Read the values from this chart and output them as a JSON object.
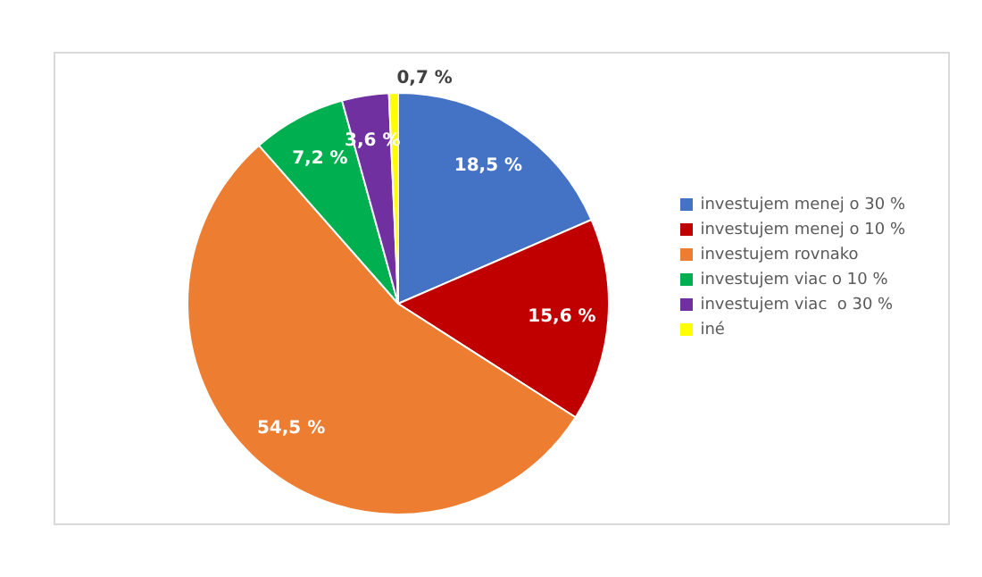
{
  "chart_data": {
    "type": "pie",
    "categories": [
      "investujem menej o 30 %",
      "investujem menej o 10 %",
      "investujem rovnako",
      "investujem viac o 10 %",
      "investujem viac  o 30 %",
      "iné"
    ],
    "values": [
      18.5,
      15.6,
      54.5,
      7.2,
      3.6,
      0.7
    ],
    "colors": [
      "#4472c4",
      "#c00000",
      "#ed7d31",
      "#00b050",
      "#7030a0",
      "#ffff00"
    ],
    "value_labels": [
      "18,5 %",
      "15,6 %",
      "54,5 %",
      "7,2 %",
      "3,6 %",
      "0,7 %"
    ],
    "legend": "right"
  }
}
